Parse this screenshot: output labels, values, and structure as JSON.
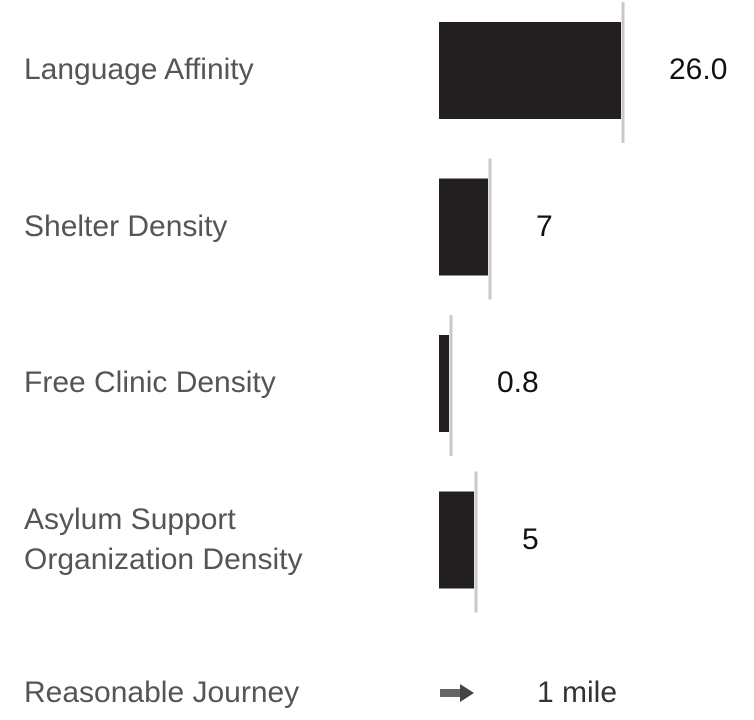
{
  "chart_data": {
    "type": "bar",
    "categories": [
      "Language Affinity",
      "Shelter Density",
      "Free Clinic Density",
      "Asylum Support Organization Density"
    ],
    "values": [
      26,
      7,
      0.8,
      5
    ],
    "value_labels": [
      "26.0",
      "7",
      "0.8",
      "5"
    ],
    "color": "#231f20"
  },
  "footer": {
    "label": "Reasonable Journey",
    "value": "1 mile"
  }
}
